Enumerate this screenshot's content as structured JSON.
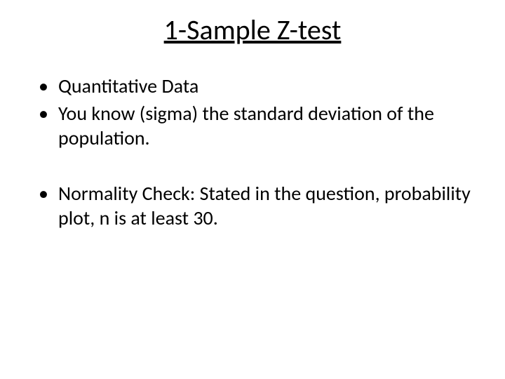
{
  "title": "1-Sample Z-test",
  "bullets": {
    "b1": "Quantitative Data",
    "b2": "You know (sigma) the standard deviation of the population.",
    "b3": "Normality Check:  Stated in the question, probability plot, n is at least 30."
  },
  "colors": {
    "background": "#ffffff",
    "text": "#000000"
  },
  "typography": {
    "title_fontsize": 40,
    "body_fontsize": 28,
    "font_family": "Calibri"
  }
}
